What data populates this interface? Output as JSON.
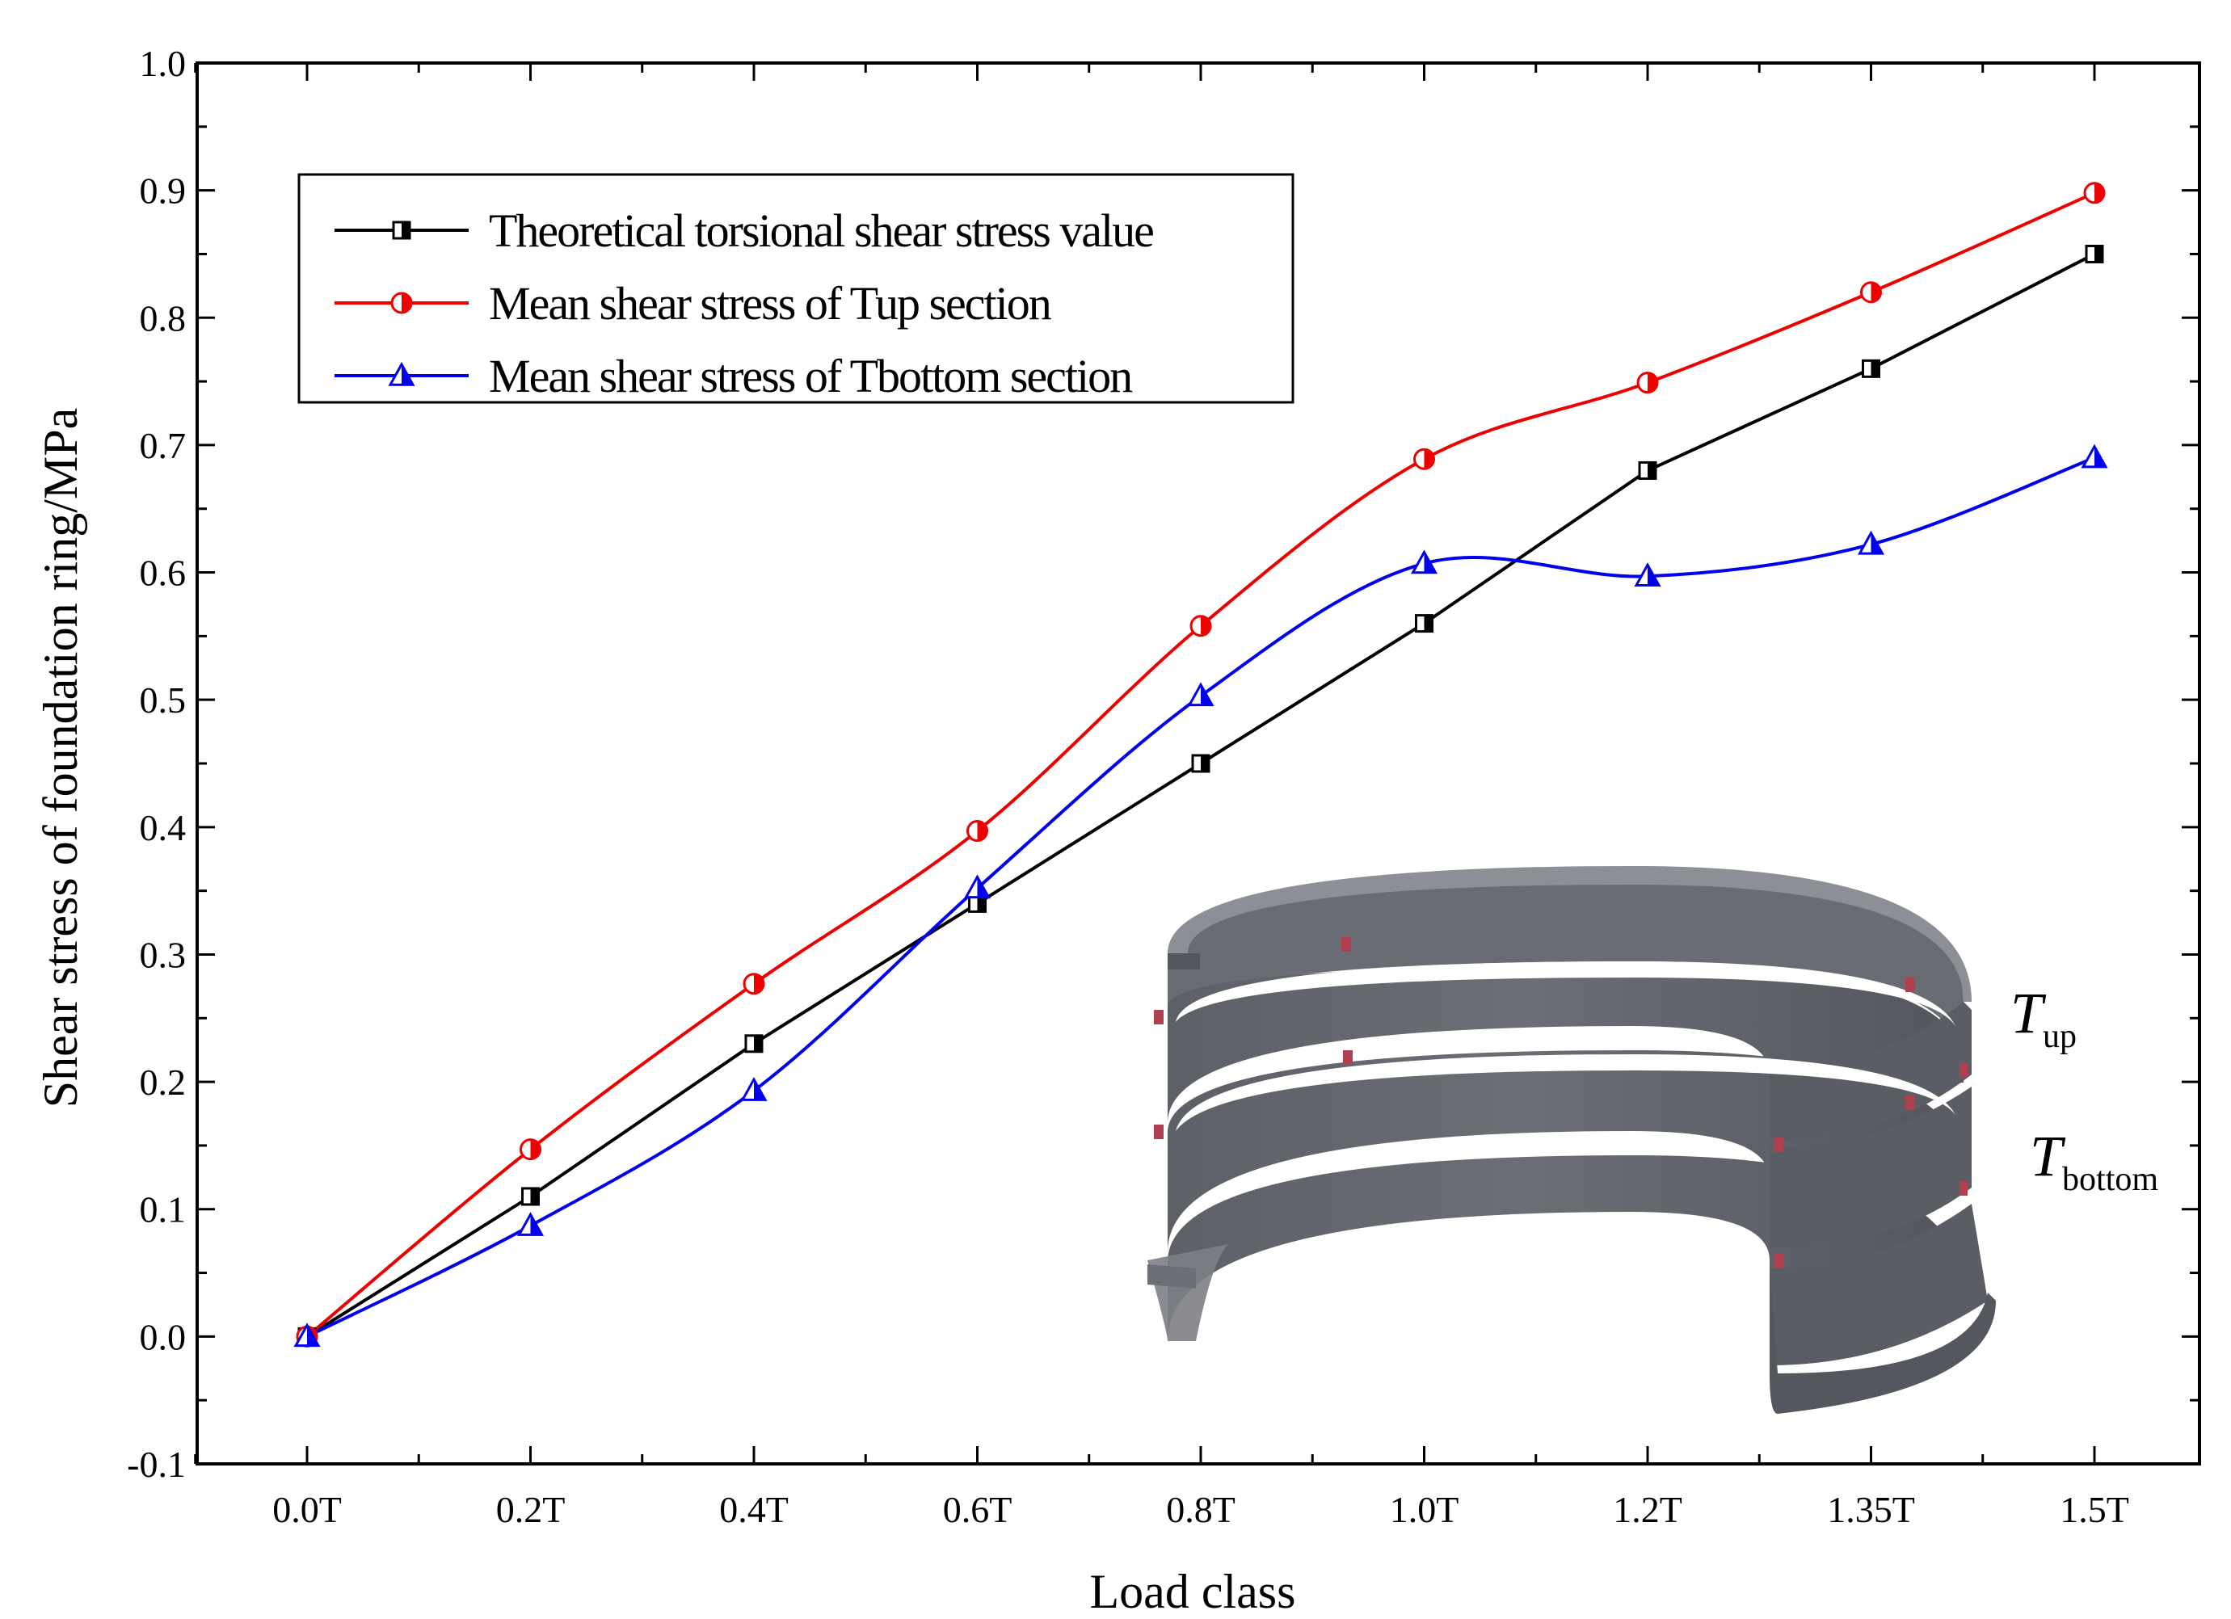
{
  "chart_data": {
    "type": "line",
    "title": "",
    "xlabel": "Load class",
    "ylabel": "Shear stress of foundation ring/MPa",
    "categories": [
      "0.0T",
      "0.2T",
      "0.4T",
      "0.6T",
      "0.8T",
      "1.0T",
      "1.2T",
      "1.35T",
      "1.5T"
    ],
    "ylim": [
      -0.1,
      1.0
    ],
    "yticks": [
      "-0.1",
      "0.0",
      "0.1",
      "0.2",
      "0.3",
      "0.4",
      "0.5",
      "0.6",
      "0.7",
      "0.8",
      "0.9",
      "1.0"
    ],
    "legend_position": "top-left",
    "series": [
      {
        "name": "Theoretical torsional shear stress value",
        "color": "#000000",
        "marker": "half-filled-square",
        "smooth": false,
        "values": [
          0.0,
          0.11,
          0.23,
          0.34,
          0.45,
          0.56,
          0.68,
          0.76,
          0.85
        ]
      },
      {
        "name": "Mean shear stress of Tup section",
        "color": "#ee0000",
        "marker": "half-filled-circle",
        "smooth": true,
        "values": [
          0.0,
          0.147,
          0.277,
          0.397,
          0.558,
          0.689,
          0.749,
          0.82,
          0.898
        ]
      },
      {
        "name": "Mean shear stress of Tbottom section",
        "color": "#0000ee",
        "marker": "half-filled-triangle",
        "smooth": true,
        "values": [
          0.0,
          0.087,
          0.193,
          0.352,
          0.503,
          0.607,
          0.597,
          0.622,
          0.69
        ]
      }
    ],
    "annotations": {
      "ring_label_up": {
        "main": "T",
        "sub": "up"
      },
      "ring_label_bottom": {
        "main": "T",
        "sub": "bottom"
      }
    }
  }
}
